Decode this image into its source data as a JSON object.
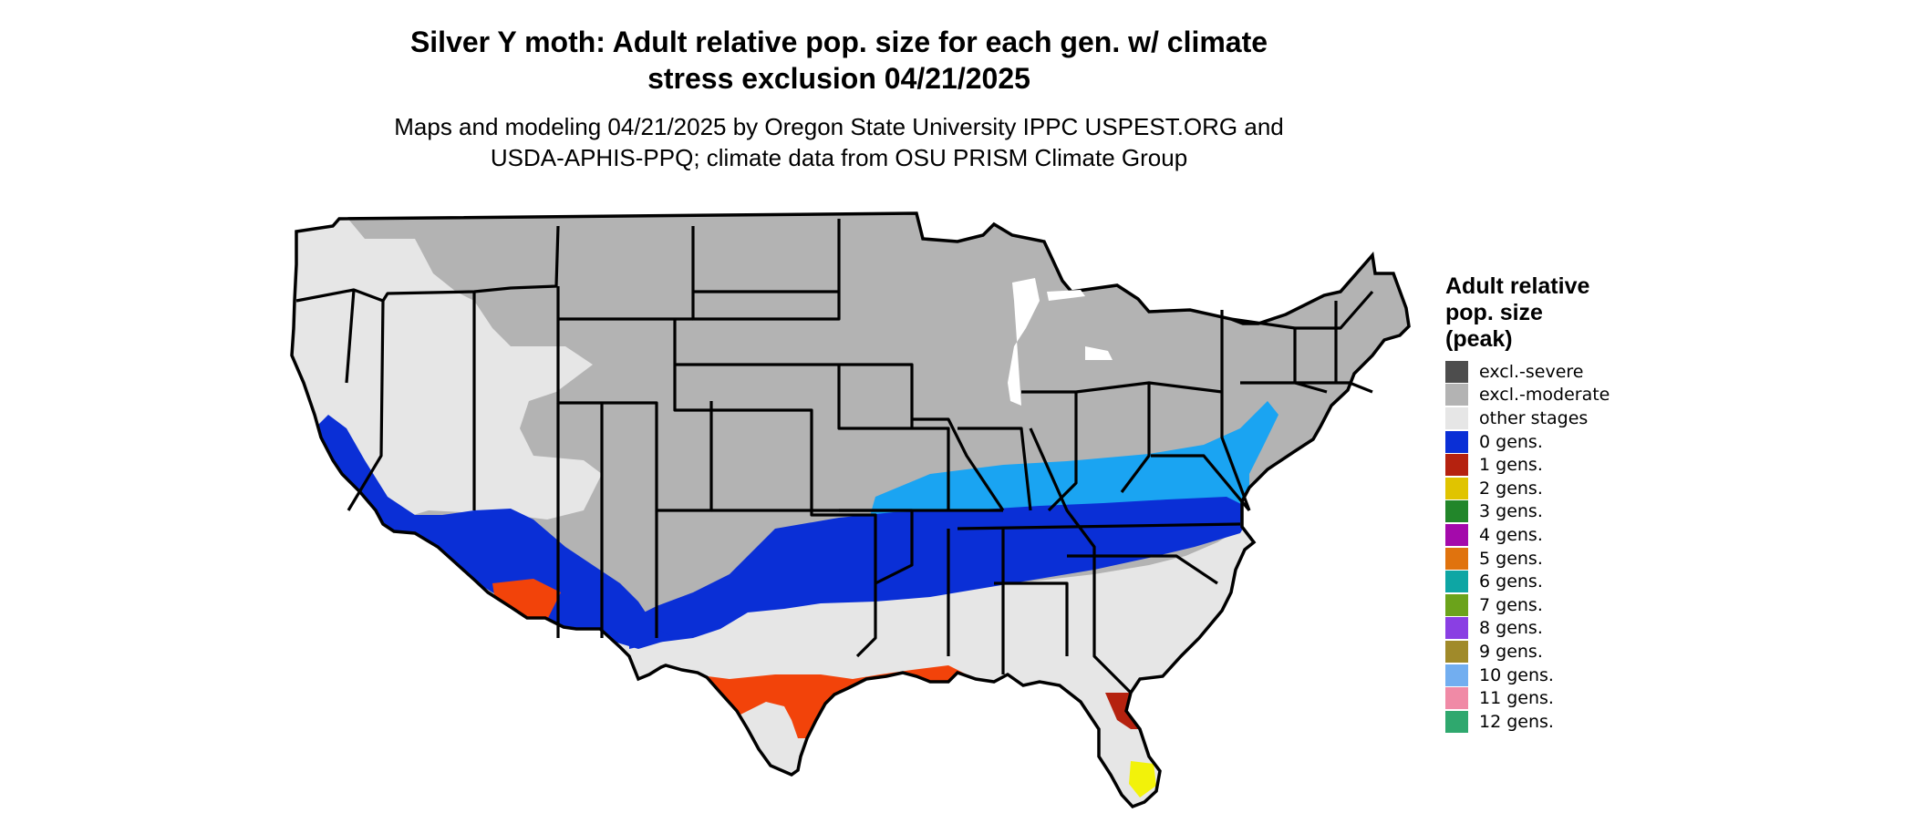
{
  "title": "Silver Y moth: Adult relative pop. size for each gen. w/ climate stress exclusion 04/21/2025",
  "title_lines": [
    "Silver Y moth: Adult relative pop. size for each gen. w/ climate",
    "stress exclusion 04/21/2025"
  ],
  "subtitle_lines": [
    "Maps and modeling 04/21/2025 by Oregon State University IPPC USPEST.ORG and",
    "USDA-APHIS-PPQ; climate data from OSU PRISM Climate Group"
  ],
  "legend": {
    "title_lines": [
      "Adult relative",
      "pop. size",
      "(peak)"
    ],
    "items": [
      {
        "label": "excl.-severe",
        "color": "#4d4d4d"
      },
      {
        "label": "excl.-moderate",
        "color": "#b3b3b3"
      },
      {
        "label": "other stages",
        "color": "#e6e6e6"
      },
      {
        "label": "0 gens.",
        "color": "#0a2fd6"
      },
      {
        "label": "1 gens.",
        "color": "#b5220f"
      },
      {
        "label": "2 gens.",
        "color": "#e0c400"
      },
      {
        "label": "3 gens.",
        "color": "#22862a"
      },
      {
        "label": "4 gens.",
        "color": "#a40aab"
      },
      {
        "label": "5 gens.",
        "color": "#e0730e"
      },
      {
        "label": "6 gens.",
        "color": "#0ea6a4"
      },
      {
        "label": "7 gens.",
        "color": "#6ba31b"
      },
      {
        "label": "8 gens.",
        "color": "#8a3fe3"
      },
      {
        "label": "9 gens.",
        "color": "#a08a2a"
      },
      {
        "label": "10 gens.",
        "color": "#72aef0"
      },
      {
        "label": "11 gens.",
        "color": "#f08aa6"
      },
      {
        "label": "12 gens.",
        "color": "#2fa86e"
      }
    ]
  },
  "map_colors": {
    "excluded_moderate": "#b3b3b3",
    "other_stages": "#e6e6e6",
    "gen0_light": "#1aa4f2",
    "gen0_dark": "#0a2fd6",
    "gen1_dark": "#b5220f",
    "gen1_bright": "#f2430a",
    "gen2": "#f2f20a",
    "border": "#000000"
  }
}
